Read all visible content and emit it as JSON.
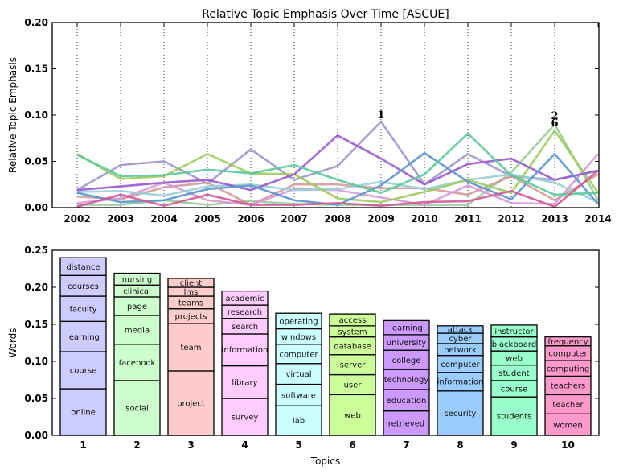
{
  "chart_data": [
    {
      "type": "line",
      "title": "Relative Topic Emphasis Over Time [ASCUE]",
      "xlabel": "",
      "ylabel": "Relative Topic Emphasis",
      "ylim": [
        0,
        0.2
      ],
      "yticks": [
        "0.00",
        "0.05",
        "0.10",
        "0.15",
        "0.20"
      ],
      "x": [
        "2002",
        "2003",
        "2004",
        "2005",
        "2006",
        "2007",
        "2008",
        "2009",
        "2010",
        "2011",
        "2012",
        "2013",
        "2014"
      ],
      "grid": "vertical dotted at each year",
      "annotations": [
        {
          "text": "1",
          "x": "2009",
          "y": 0.1
        },
        {
          "text": "2",
          "x": "2013",
          "y": 0.1
        },
        {
          "text": "6",
          "x": "2013",
          "y": 0.092
        }
      ],
      "series": [
        {
          "name": "1",
          "color": "#9b97cc",
          "values": [
            0.019,
            0.046,
            0.05,
            0.026,
            0.063,
            0.03,
            0.045,
            0.093,
            0.025,
            0.058,
            0.034,
            0.03,
            0.04
          ]
        },
        {
          "name": "2",
          "color": "#98cc98",
          "values": [
            0.003,
            0.003,
            0.008,
            0.003,
            0.007,
            0.004,
            0.003,
            0.003,
            0.003,
            0.003,
            0.038,
            0.09,
            0.008
          ]
        },
        {
          "name": "3",
          "color": "#d49a9a",
          "values": [
            0.012,
            0.009,
            0.022,
            0.027,
            0.003,
            0.025,
            0.025,
            0.021,
            0.021,
            0.014,
            0.034,
            0.008,
            0.036
          ]
        },
        {
          "name": "4",
          "color": "#d89ad8",
          "values": [
            0.005,
            0.01,
            0.027,
            0.008,
            0.003,
            0.02,
            0.019,
            0.011,
            0.003,
            0.024,
            0.005,
            0.004,
            0.058
          ]
        },
        {
          "name": "5",
          "color": "#96cfd6",
          "values": [
            0.017,
            0.018,
            0.013,
            0.023,
            0.025,
            0.019,
            0.02,
            0.028,
            0.02,
            0.03,
            0.036,
            0.027,
            0.006
          ]
        },
        {
          "name": "6",
          "color": "#9ccc5c",
          "values": [
            0.058,
            0.031,
            0.034,
            0.058,
            0.037,
            0.036,
            0.01,
            0.006,
            0.017,
            0.03,
            0.016,
            0.083,
            0.016
          ]
        },
        {
          "name": "7",
          "color": "#9b59d0",
          "values": [
            0.019,
            0.023,
            0.027,
            0.03,
            0.019,
            0.036,
            0.078,
            0.053,
            0.025,
            0.047,
            0.053,
            0.03,
            0.04
          ]
        },
        {
          "name": "8",
          "color": "#5b96d0",
          "values": [
            0.016,
            0.006,
            0.008,
            0.02,
            0.024,
            0.008,
            0.003,
            0.024,
            0.059,
            0.028,
            0.009,
            0.058,
            0.004
          ]
        },
        {
          "name": "9",
          "color": "#5cc99a",
          "values": [
            0.057,
            0.034,
            0.035,
            0.041,
            0.037,
            0.046,
            0.03,
            0.016,
            0.036,
            0.08,
            0.035,
            0.014,
            0.016
          ]
        },
        {
          "name": "10",
          "color": "#d05a96",
          "values": [
            0.001,
            0.014,
            0.002,
            0.014,
            0.003,
            0.003,
            0.005,
            0.002,
            0.006,
            0.007,
            0.018,
            0.001,
            0.04
          ]
        }
      ]
    },
    {
      "type": "bar",
      "stacked": true,
      "title": "",
      "xlabel": "Topics",
      "ylabel": "Words",
      "ylim": [
        0,
        0.25
      ],
      "yticks": [
        "0.00",
        "0.05",
        "0.10",
        "0.15",
        "0.20",
        "0.25"
      ],
      "categories": [
        "1",
        "2",
        "3",
        "4",
        "5",
        "6",
        "7",
        "8",
        "9",
        "10"
      ],
      "bars": [
        {
          "topic": "1",
          "color": "#ccccff",
          "segments": [
            {
              "word": "online",
              "value": 0.063
            },
            {
              "word": "course",
              "value": 0.05
            },
            {
              "word": "learning",
              "value": 0.041
            },
            {
              "word": "faculty",
              "value": 0.034
            },
            {
              "word": "courses",
              "value": 0.028
            },
            {
              "word": "distance",
              "value": 0.024
            }
          ]
        },
        {
          "topic": "2",
          "color": "#ccffcc",
          "segments": [
            {
              "word": "social",
              "value": 0.074
            },
            {
              "word": "facebook",
              "value": 0.049
            },
            {
              "word": "media",
              "value": 0.039
            },
            {
              "word": "page",
              "value": 0.025
            },
            {
              "word": "clinical",
              "value": 0.016
            },
            {
              "word": "nursing",
              "value": 0.016
            }
          ]
        },
        {
          "topic": "3",
          "color": "#ffcccc",
          "segments": [
            {
              "word": "project",
              "value": 0.087
            },
            {
              "word": "team",
              "value": 0.064
            },
            {
              "word": "projects",
              "value": 0.02
            },
            {
              "word": "teams",
              "value": 0.017
            },
            {
              "word": "lms",
              "value": 0.012
            },
            {
              "word": "client",
              "value": 0.012
            }
          ]
        },
        {
          "topic": "4",
          "color": "#ffccff",
          "segments": [
            {
              "word": "survey",
              "value": 0.05
            },
            {
              "word": "library",
              "value": 0.044
            },
            {
              "word": "information",
              "value": 0.043
            },
            {
              "word": "search",
              "value": 0.021
            },
            {
              "word": "research",
              "value": 0.018
            },
            {
              "word": "academic",
              "value": 0.019
            }
          ]
        },
        {
          "topic": "5",
          "color": "#ccffff",
          "segments": [
            {
              "word": "lab",
              "value": 0.04
            },
            {
              "word": "software",
              "value": 0.029
            },
            {
              "word": "virtual",
              "value": 0.028
            },
            {
              "word": "computer",
              "value": 0.026
            },
            {
              "word": "windows",
              "value": 0.021
            },
            {
              "word": "operating",
              "value": 0.021
            }
          ]
        },
        {
          "topic": "6",
          "color": "#ccff99",
          "segments": [
            {
              "word": "web",
              "value": 0.055
            },
            {
              "word": "user",
              "value": 0.027
            },
            {
              "word": "server",
              "value": 0.027
            },
            {
              "word": "database",
              "value": 0.024
            },
            {
              "word": "system",
              "value": 0.015
            },
            {
              "word": "access",
              "value": 0.016
            }
          ]
        },
        {
          "topic": "7",
          "color": "#cc99ff",
          "segments": [
            {
              "word": "retrieved",
              "value": 0.033
            },
            {
              "word": "education",
              "value": 0.029
            },
            {
              "word": "technology",
              "value": 0.027
            },
            {
              "word": "college",
              "value": 0.026
            },
            {
              "word": "university",
              "value": 0.021
            },
            {
              "word": "learning",
              "value": 0.019
            }
          ]
        },
        {
          "topic": "8",
          "color": "#99ccff",
          "segments": [
            {
              "word": "security",
              "value": 0.06
            },
            {
              "word": "information",
              "value": 0.025
            },
            {
              "word": "computer",
              "value": 0.023
            },
            {
              "word": "network",
              "value": 0.016
            },
            {
              "word": "cyber",
              "value": 0.014
            },
            {
              "word": "attack",
              "value": 0.01
            }
          ]
        },
        {
          "topic": "9",
          "color": "#99ffcc",
          "segments": [
            {
              "word": "students",
              "value": 0.052
            },
            {
              "word": "course",
              "value": 0.022
            },
            {
              "word": "student",
              "value": 0.021
            },
            {
              "word": "web",
              "value": 0.019
            },
            {
              "word": "blackboard",
              "value": 0.019
            },
            {
              "word": "instructor",
              "value": 0.016
            }
          ]
        },
        {
          "topic": "10",
          "color": "#ff99cc",
          "segments": [
            {
              "word": "women",
              "value": 0.029
            },
            {
              "word": "teacher",
              "value": 0.026
            },
            {
              "word": "teachers",
              "value": 0.025
            },
            {
              "word": "computing",
              "value": 0.021
            },
            {
              "word": "computer",
              "value": 0.02
            },
            {
              "word": "frequency",
              "value": 0.012
            }
          ]
        }
      ]
    }
  ]
}
